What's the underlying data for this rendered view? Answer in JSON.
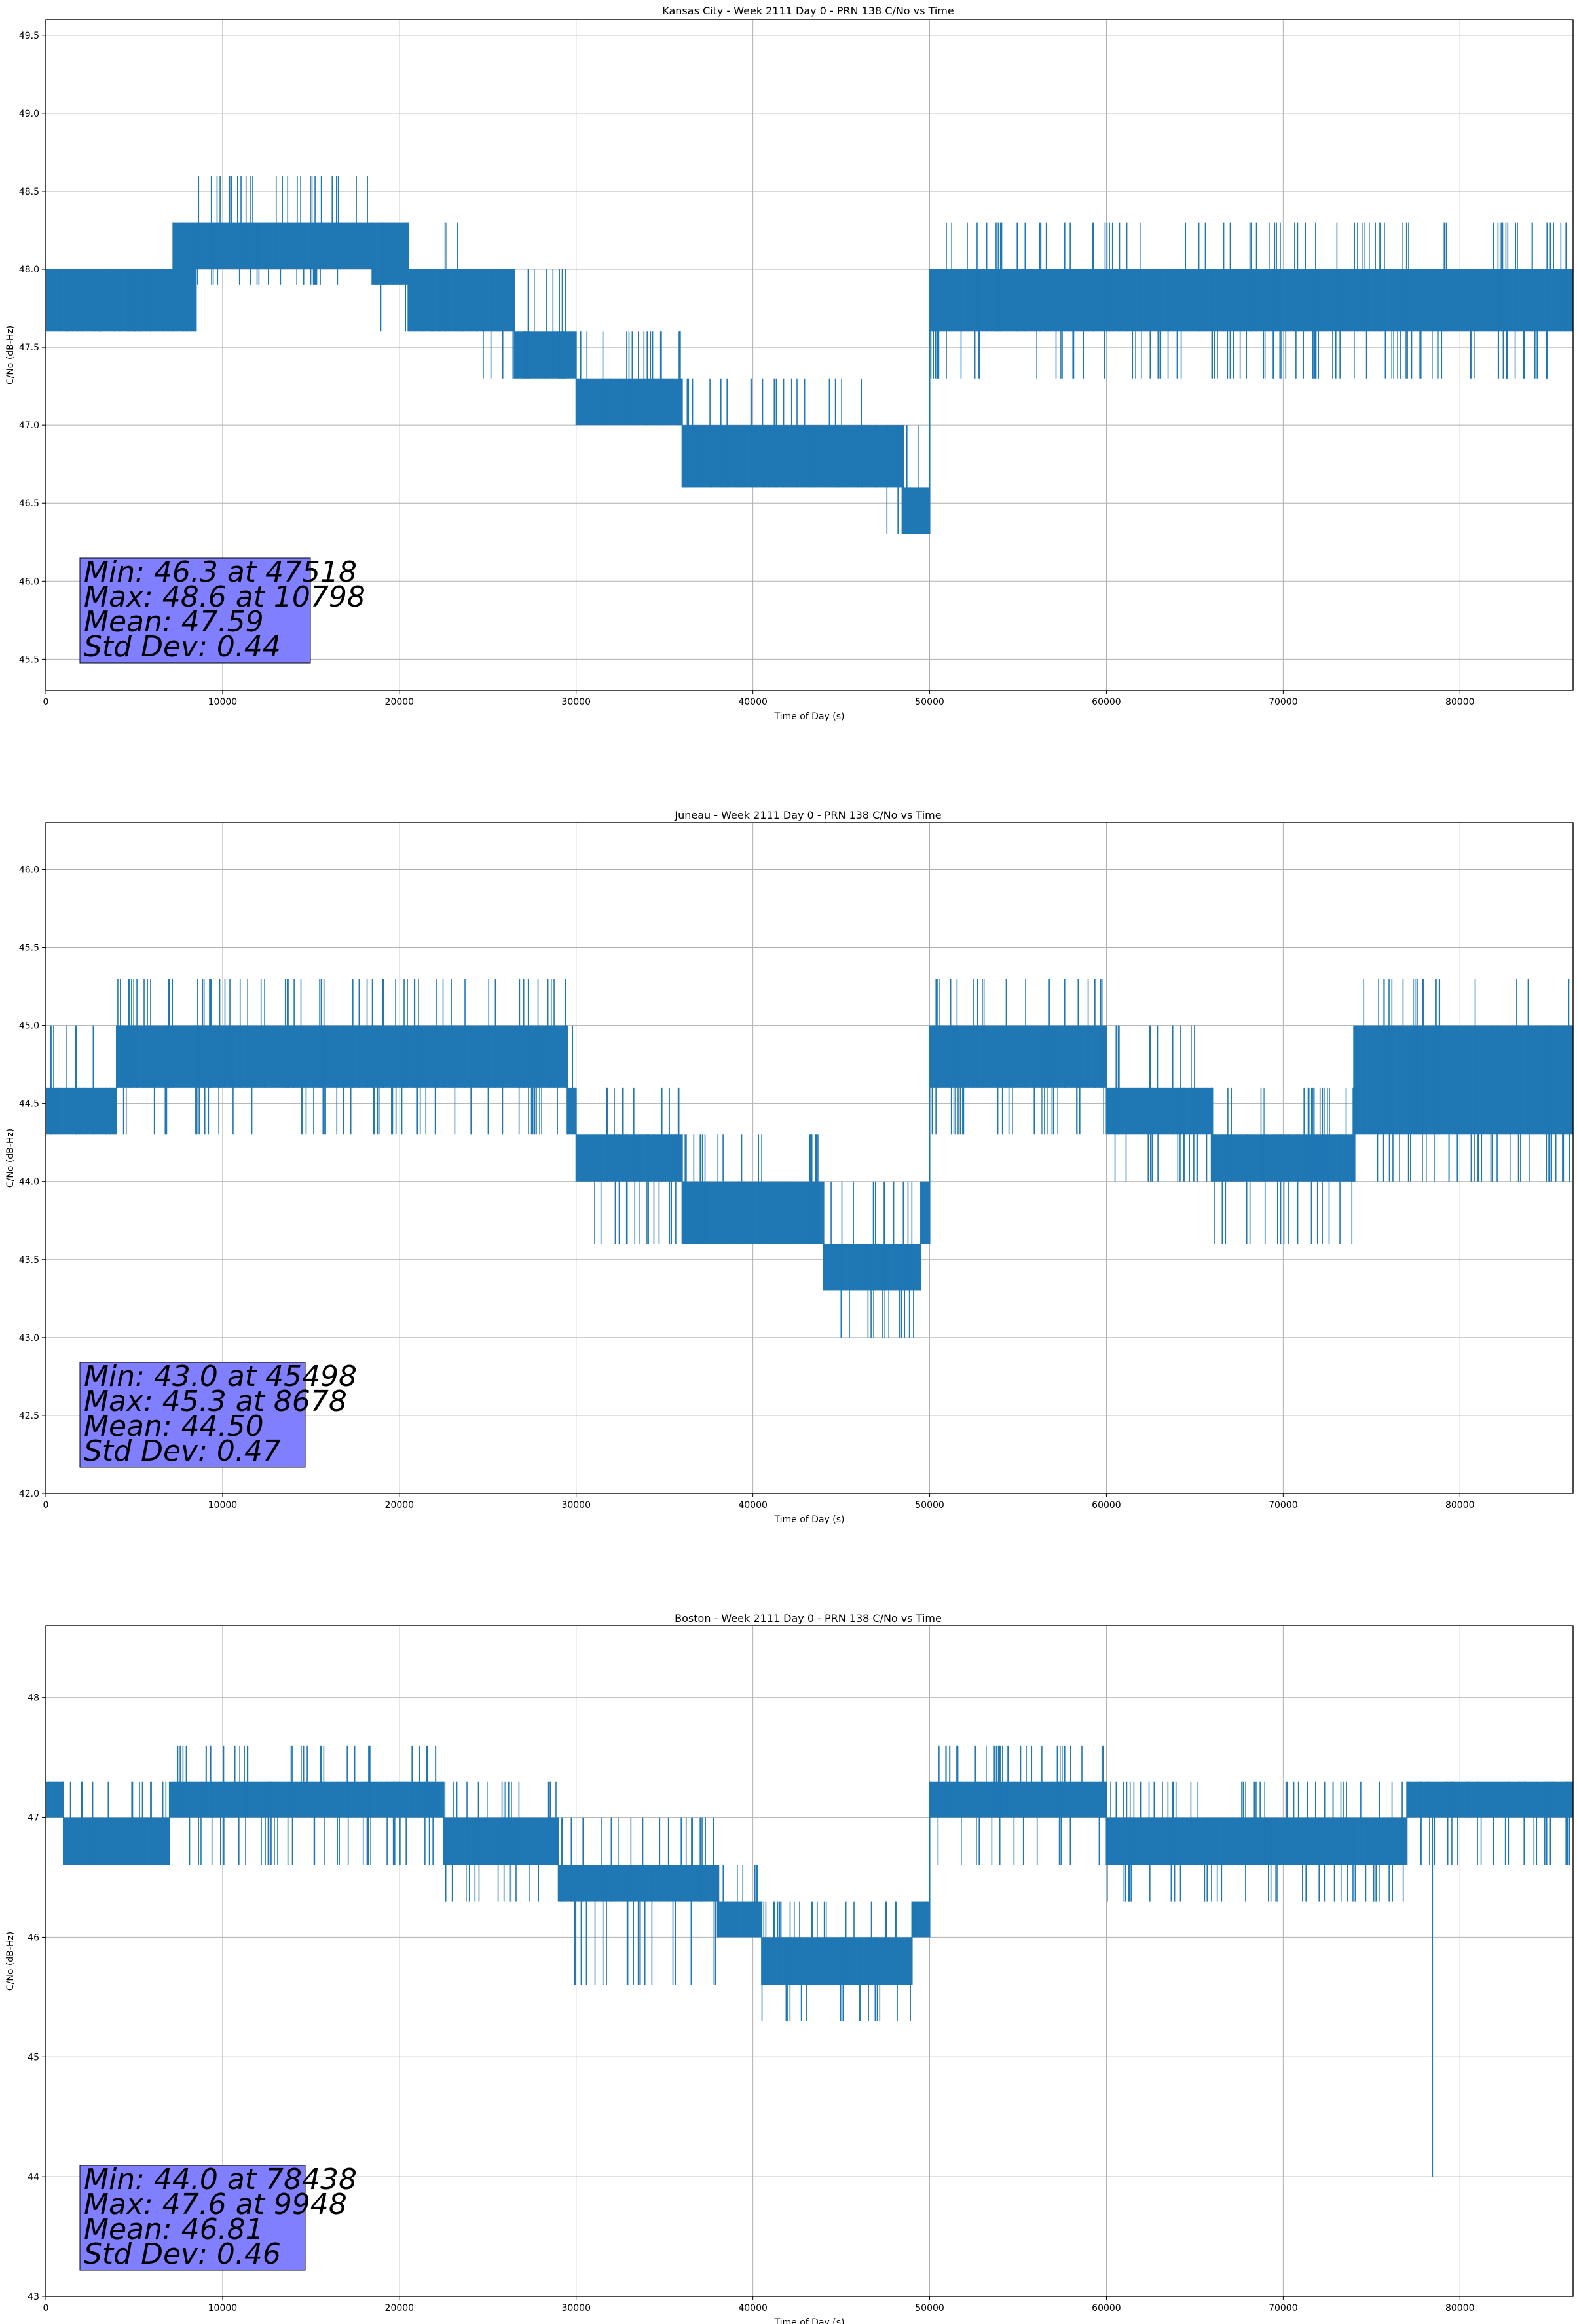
{
  "chart_data": [
    {
      "type": "line",
      "title": "Kansas City - Week 2111 Day 0 - PRN 138 C/No vs Time",
      "xlabel": "Time of Day (s)",
      "ylabel": "C/No (dB-Hz)",
      "xlim": [
        0,
        86400
      ],
      "ylim": [
        45.3,
        49.6
      ],
      "xticks": [
        "0",
        "10000",
        "20000",
        "30000",
        "40000",
        "50000",
        "60000",
        "70000",
        "80000"
      ],
      "xtick_values": [
        0,
        10000,
        20000,
        30000,
        40000,
        50000,
        60000,
        70000,
        80000
      ],
      "yticks": [
        "45.5",
        "46.0",
        "46.5",
        "47.0",
        "47.5",
        "48.0",
        "48.5",
        "49.0",
        "49.5"
      ],
      "ytick_values": [
        45.5,
        46.0,
        46.5,
        47.0,
        47.5,
        48.0,
        48.5,
        49.0,
        49.5
      ],
      "grid": true,
      "color": "#1f77b4",
      "stats": {
        "min": "Min: 46.3 at 47518",
        "max": "Max: 48.6 at 10798",
        "mean": "Mean: 47.59",
        "std": "Std Dev: 0.44"
      },
      "bands": [
        {
          "x0": 0,
          "x1": 7200,
          "low": 47.6,
          "high": 48.0,
          "ulow": 47.6,
          "uhigh": 48.0
        },
        {
          "x0": 7200,
          "x1": 8500,
          "low": 47.6,
          "high": 48.3,
          "ulow": 47.6,
          "uhigh": 48.3
        },
        {
          "x0": 8500,
          "x1": 18500,
          "low": 48.0,
          "high": 48.3,
          "ulow": 47.9,
          "uhigh": 48.6
        },
        {
          "x0": 18500,
          "x1": 20500,
          "low": 47.9,
          "high": 48.3,
          "ulow": 47.6,
          "uhigh": 48.3
        },
        {
          "x0": 20500,
          "x1": 23500,
          "low": 47.6,
          "high": 48.0,
          "ulow": 47.6,
          "uhigh": 48.3
        },
        {
          "x0": 23500,
          "x1": 26500,
          "low": 47.6,
          "high": 48.0,
          "ulow": 47.3,
          "uhigh": 48.0
        },
        {
          "x0": 26500,
          "x1": 30000,
          "low": 47.3,
          "high": 47.6,
          "ulow": 47.3,
          "uhigh": 48.0
        },
        {
          "x0": 30000,
          "x1": 36000,
          "low": 47.0,
          "high": 47.3,
          "ulow": 47.0,
          "uhigh": 47.6
        },
        {
          "x0": 36000,
          "x1": 47000,
          "low": 46.6,
          "high": 47.0,
          "ulow": 46.6,
          "uhigh": 47.3
        },
        {
          "x0": 47000,
          "x1": 48500,
          "low": 46.6,
          "high": 47.0,
          "ulow": 46.3,
          "uhigh": 47.0
        },
        {
          "x0": 48500,
          "x1": 50000,
          "low": 46.3,
          "high": 46.6,
          "ulow": 46.3,
          "uhigh": 47.0
        },
        {
          "x0": 50000,
          "x1": 86400,
          "low": 47.6,
          "high": 48.0,
          "ulow": 47.3,
          "uhigh": 48.3
        }
      ]
    },
    {
      "type": "line",
      "title": "Juneau - Week 2111 Day 0 - PRN 138 C/No vs Time",
      "xlabel": "Time of Day (s)",
      "ylabel": "C/No (dB-Hz)",
      "xlim": [
        0,
        86400
      ],
      "ylim": [
        42.0,
        46.3
      ],
      "xticks": [
        "0",
        "10000",
        "20000",
        "30000",
        "40000",
        "50000",
        "60000",
        "70000",
        "80000"
      ],
      "xtick_values": [
        0,
        10000,
        20000,
        30000,
        40000,
        50000,
        60000,
        70000,
        80000
      ],
      "yticks": [
        "42.0",
        "42.5",
        "43.0",
        "43.5",
        "44.0",
        "44.5",
        "45.0",
        "45.5",
        "46.0"
      ],
      "ytick_values": [
        42.0,
        42.5,
        43.0,
        43.5,
        44.0,
        44.5,
        45.0,
        45.5,
        46.0
      ],
      "grid": true,
      "color": "#1f77b4",
      "stats": {
        "min": "Min: 43.0 at 45498",
        "max": "Max: 45.3 at 8678",
        "mean": "Mean: 44.50",
        "std": "Std Dev: 0.47"
      },
      "bands": [
        {
          "x0": 0,
          "x1": 4000,
          "low": 44.3,
          "high": 44.6,
          "ulow": 44.3,
          "uhigh": 45.0
        },
        {
          "x0": 4000,
          "x1": 29500,
          "low": 44.6,
          "high": 45.0,
          "ulow": 44.3,
          "uhigh": 45.3
        },
        {
          "x0": 29500,
          "x1": 30000,
          "low": 44.3,
          "high": 44.6,
          "ulow": 44.3,
          "uhigh": 45.0
        },
        {
          "x0": 30000,
          "x1": 36000,
          "low": 44.0,
          "high": 44.3,
          "ulow": 43.6,
          "uhigh": 44.6
        },
        {
          "x0": 36000,
          "x1": 44000,
          "low": 43.6,
          "high": 44.0,
          "ulow": 43.6,
          "uhigh": 44.3
        },
        {
          "x0": 44000,
          "x1": 49500,
          "low": 43.3,
          "high": 43.6,
          "ulow": 43.0,
          "uhigh": 44.0
        },
        {
          "x0": 49500,
          "x1": 50000,
          "low": 43.6,
          "high": 44.0,
          "ulow": 43.6,
          "uhigh": 44.0
        },
        {
          "x0": 50000,
          "x1": 60000,
          "low": 44.6,
          "high": 45.0,
          "ulow": 44.3,
          "uhigh": 45.3
        },
        {
          "x0": 60000,
          "x1": 66000,
          "low": 44.3,
          "high": 44.6,
          "ulow": 44.0,
          "uhigh": 45.0
        },
        {
          "x0": 66000,
          "x1": 74000,
          "low": 44.0,
          "high": 44.3,
          "ulow": 43.6,
          "uhigh": 44.6
        },
        {
          "x0": 74000,
          "x1": 86400,
          "low": 44.3,
          "high": 45.0,
          "ulow": 44.0,
          "uhigh": 45.3
        }
      ]
    },
    {
      "type": "line",
      "title": "Boston - Week 2111 Day 0 - PRN 138 C/No vs Time",
      "xlabel": "Time of Day (s)",
      "ylabel": "C/No (dB-Hz)",
      "xlim": [
        0,
        86400
      ],
      "ylim": [
        43.0,
        48.6
      ],
      "xticks": [
        "0",
        "10000",
        "20000",
        "30000",
        "40000",
        "50000",
        "60000",
        "70000",
        "80000"
      ],
      "xtick_values": [
        0,
        10000,
        20000,
        30000,
        40000,
        50000,
        60000,
        70000,
        80000
      ],
      "yticks": [
        "43",
        "44",
        "45",
        "46",
        "47",
        "48"
      ],
      "ytick_values": [
        43,
        44,
        45,
        46,
        47,
        48
      ],
      "grid": true,
      "color": "#1f77b4",
      "stats": {
        "min": "Min: 44.0 at 78438",
        "max": "Max: 47.6 at 9948",
        "mean": "Mean: 46.81",
        "std": "Std Dev: 0.46"
      },
      "bands": [
        {
          "x0": 0,
          "x1": 1000,
          "low": 47.0,
          "high": 47.3,
          "ulow": 47.0,
          "uhigh": 47.3
        },
        {
          "x0": 1000,
          "x1": 7000,
          "low": 46.6,
          "high": 47.0,
          "ulow": 46.6,
          "uhigh": 47.3
        },
        {
          "x0": 7000,
          "x1": 22500,
          "low": 47.0,
          "high": 47.3,
          "ulow": 46.6,
          "uhigh": 47.6
        },
        {
          "x0": 22500,
          "x1": 29000,
          "low": 46.6,
          "high": 47.0,
          "ulow": 46.3,
          "uhigh": 47.3
        },
        {
          "x0": 29000,
          "x1": 38000,
          "low": 46.3,
          "high": 46.6,
          "ulow": 45.6,
          "uhigh": 47.0
        },
        {
          "x0": 38000,
          "x1": 40500,
          "low": 46.0,
          "high": 46.3,
          "ulow": 46.0,
          "uhigh": 46.6
        },
        {
          "x0": 40500,
          "x1": 49000,
          "low": 45.6,
          "high": 46.0,
          "ulow": 45.3,
          "uhigh": 46.3
        },
        {
          "x0": 49000,
          "x1": 50000,
          "low": 46.0,
          "high": 46.3,
          "ulow": 46.0,
          "uhigh": 46.3
        },
        {
          "x0": 50000,
          "x1": 60000,
          "low": 47.0,
          "high": 47.3,
          "ulow": 46.6,
          "uhigh": 47.6
        },
        {
          "x0": 60000,
          "x1": 77000,
          "low": 46.6,
          "high": 47.0,
          "ulow": 46.3,
          "uhigh": 47.3
        },
        {
          "x0": 77000,
          "x1": 86400,
          "low": 47.0,
          "high": 47.3,
          "ulow": 46.6,
          "uhigh": 47.3
        }
      ],
      "spikes": [
        {
          "x": 78438,
          "low": 44.0,
          "high": 47.0
        }
      ]
    }
  ]
}
